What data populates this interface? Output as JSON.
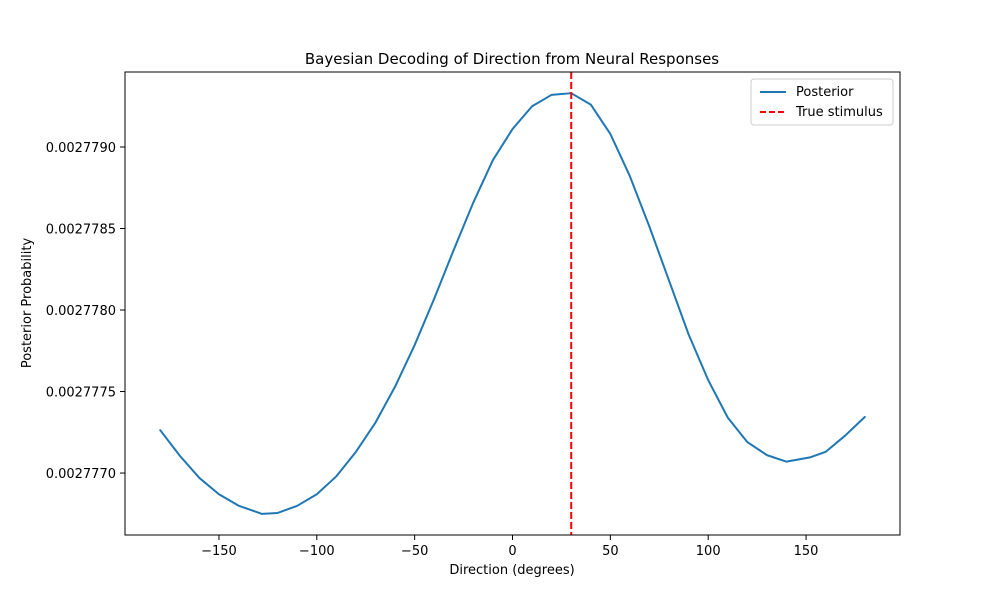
{
  "chart_data": {
    "type": "line",
    "title": "Bayesian Decoding of Direction from Neural Responses",
    "xlabel": "Direction (degrees)",
    "ylabel": "Posterior Probability",
    "xlim": [
      -198,
      198
    ],
    "ylim": [
      0.00277662,
      0.00277946
    ],
    "xticks": [
      -150,
      -100,
      -50,
      0,
      50,
      100,
      150
    ],
    "xtick_labels": [
      "−150",
      "−100",
      "−50",
      "0",
      "50",
      "100",
      "150"
    ],
    "yticks": [
      0.002777,
      0.0027775,
      0.002778,
      0.0027785,
      0.002779
    ],
    "ytick_labels": [
      "0.0027770",
      "0.0027775",
      "0.0027780",
      "0.0027785",
      "0.0027790"
    ],
    "grid": false,
    "legend_position": "upper right",
    "series": [
      {
        "name": "Posterior",
        "color": "#1f77b4",
        "style": "solid",
        "x": [
          -180,
          -170,
          -160,
          -150,
          -140,
          -128,
          -120,
          -110,
          -100,
          -90,
          -80,
          -70,
          -60,
          -50,
          -40,
          -30,
          -20,
          -10,
          0,
          10,
          20,
          30,
          40,
          50,
          60,
          70,
          80,
          90,
          100,
          110,
          120,
          130,
          140,
          152,
          160,
          170,
          180
        ],
        "y": [
          0.0027772629,
          0.002777106,
          0.00277697,
          0.00277687,
          0.0027768,
          0.0027767494,
          0.002776755,
          0.002776799,
          0.00277687,
          0.00277698,
          0.00277713,
          0.00277731,
          0.00277753,
          0.002777785,
          0.00277807,
          0.00277837,
          0.00277866,
          0.00277892,
          0.00277911,
          0.00277925,
          0.00277932,
          0.00277933,
          0.00277926,
          0.00277908,
          0.00277882,
          0.00277851,
          0.00277818,
          0.00277785,
          0.00277757,
          0.00277734,
          0.00277719,
          0.00277711,
          0.00277707,
          0.002777096,
          0.00277713,
          0.00277723,
          0.002777344
        ]
      },
      {
        "name": "True stimulus",
        "color": "#ff0000",
        "style": "dashed",
        "x_value": 30
      }
    ]
  }
}
